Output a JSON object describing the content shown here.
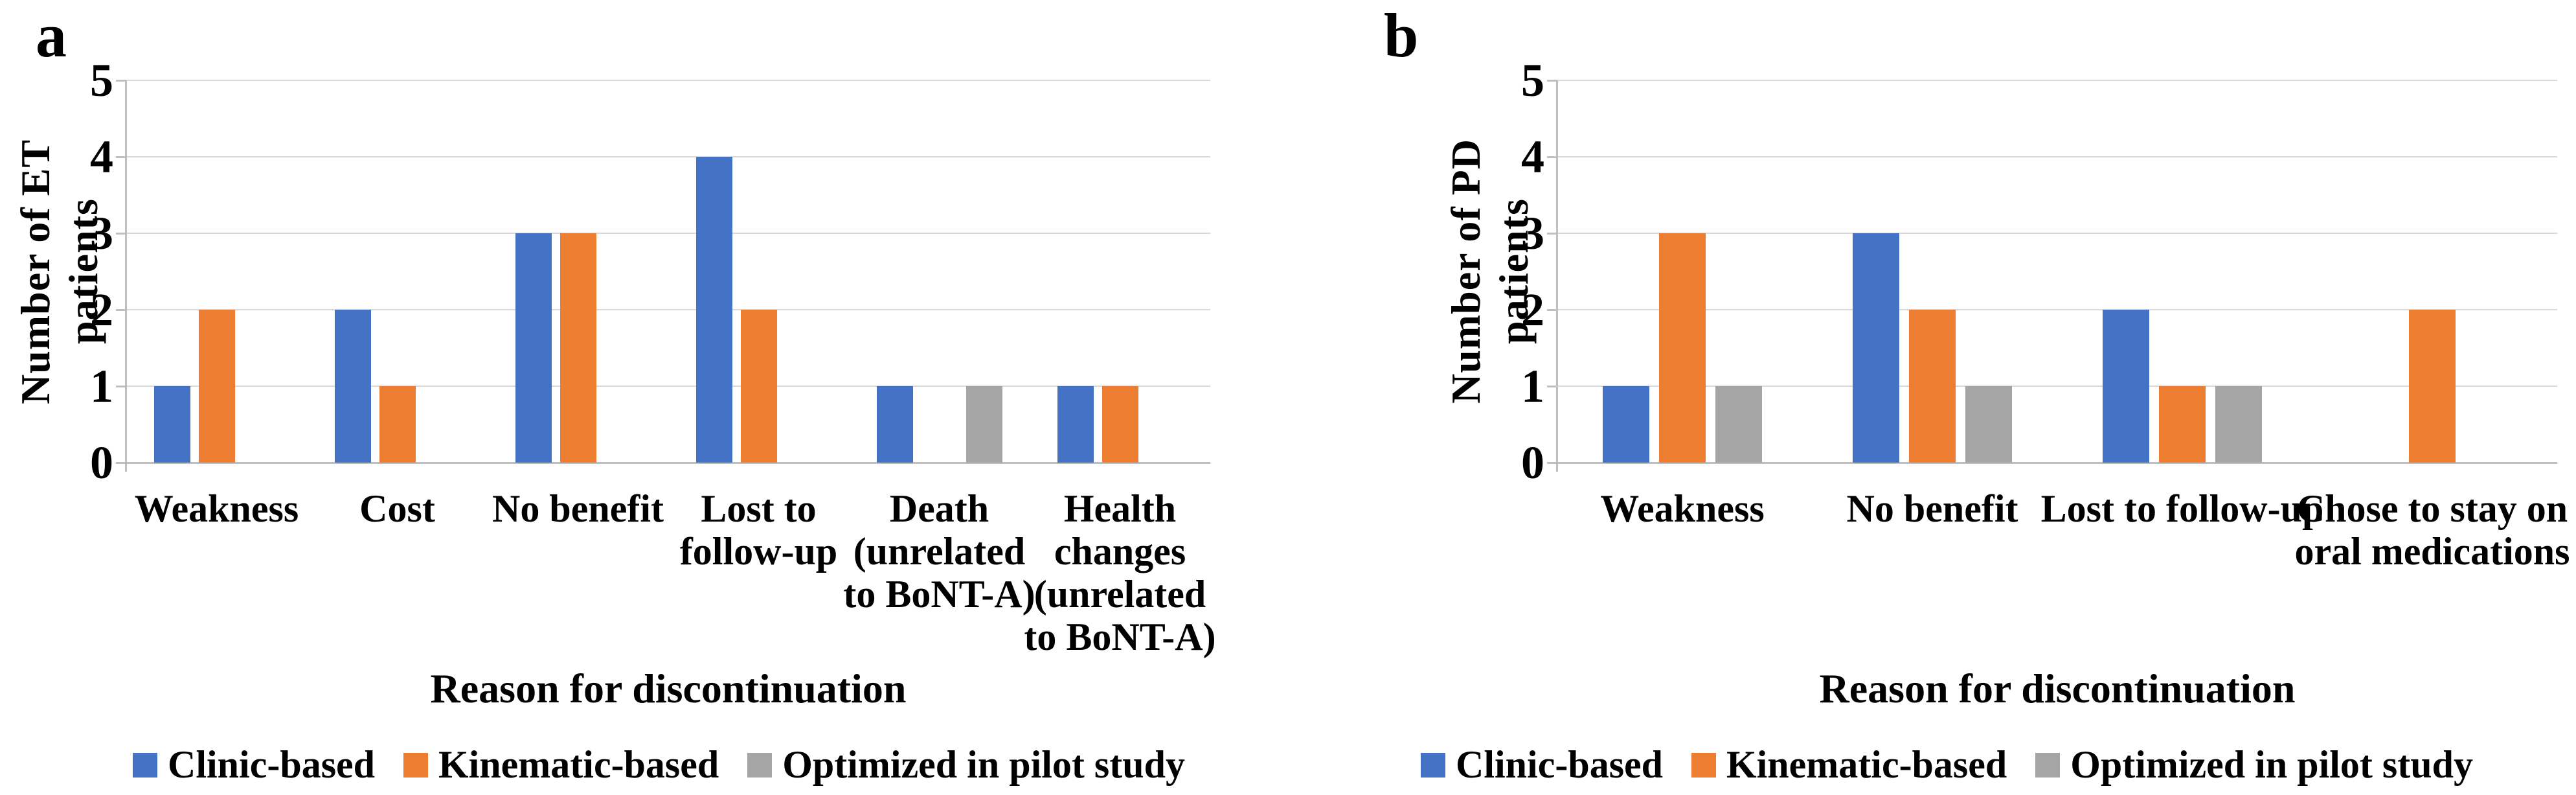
{
  "chart_data": [
    {
      "type": "bar",
      "panel_letter": "a",
      "ylabel": "Number of ET patients",
      "xlabel": "Reason for discontinuation",
      "ylim": [
        0,
        5
      ],
      "yticks": [
        0,
        1,
        2,
        3,
        4,
        5
      ],
      "grid": true,
      "legend_position": "bottom",
      "categories": [
        "Weakness",
        "Cost",
        "No benefit",
        "Lost to follow-up",
        "Death (unrelated to BoNT-A)",
        "Health changes (unrelated to BoNT-A)"
      ],
      "series": [
        {
          "name": "Clinic-based",
          "color": "#4472C4",
          "values": [
            1,
            2,
            3,
            4,
            1,
            1
          ]
        },
        {
          "name": "Kinematic-based",
          "color": "#ED7D31",
          "values": [
            2,
            1,
            3,
            2,
            null,
            1
          ]
        },
        {
          "name": "Optimized in pilot study",
          "color": "#A5A5A5",
          "values": [
            null,
            null,
            null,
            null,
            1,
            null
          ]
        }
      ]
    },
    {
      "type": "bar",
      "panel_letter": "b",
      "ylabel": "Number of PD patients",
      "xlabel": "Reason for discontinuation",
      "ylim": [
        0,
        5
      ],
      "yticks": [
        0,
        1,
        2,
        3,
        4,
        5
      ],
      "grid": true,
      "legend_position": "bottom",
      "categories": [
        "Weakness",
        "No benefit",
        "Lost to follow-up",
        "Chose to stay on oral medications"
      ],
      "series": [
        {
          "name": "Clinic-based",
          "color": "#4472C4",
          "values": [
            1,
            3,
            2,
            null
          ]
        },
        {
          "name": "Kinematic-based",
          "color": "#ED7D31",
          "values": [
            3,
            2,
            1,
            2
          ]
        },
        {
          "name": "Optimized in pilot study",
          "color": "#A5A5A5",
          "values": [
            1,
            1,
            1,
            null
          ]
        }
      ]
    }
  ],
  "legend": {
    "items": [
      {
        "label": "Clinic-based",
        "color": "#4472C4"
      },
      {
        "label": "Kinematic-based",
        "color": "#ED7D31"
      },
      {
        "label": "Optimized in pilot study",
        "color": "#A5A5A5"
      }
    ]
  },
  "colors": {
    "clinic_based": "#4472C4",
    "kinematic_based": "#ED7D31",
    "optimized_pilot": "#A5A5A5",
    "gridline": "#D9D9D9",
    "axis": "#BFBFBF",
    "text": "#000000",
    "background": "#FFFFFF"
  }
}
